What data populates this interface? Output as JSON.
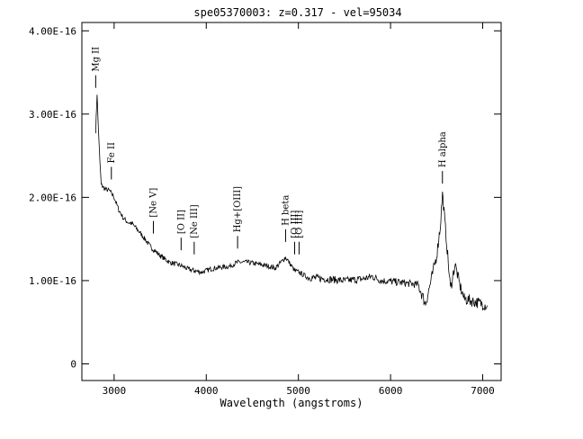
{
  "chart_data": {
    "type": "line",
    "title": "spe05370003: z=0.317 - vel=95034",
    "xlabel": "Wavelength (angstroms)",
    "ylabel": "",
    "xlim": [
      2650,
      7200
    ],
    "ylim": [
      -2e-17,
      4.1e-16
    ],
    "x_ticks": [
      3000,
      4000,
      5000,
      6000,
      7000
    ],
    "x_tick_labels": [
      "3000",
      "4000",
      "5000",
      "6000",
      "7000"
    ],
    "y_ticks": [
      0,
      1e-16,
      2e-16,
      3e-16,
      4e-16
    ],
    "y_tick_labels": [
      "0",
      "1.00E-16",
      "2.00E-16",
      "3.00E-16",
      "4.00E-16"
    ],
    "grid": false,
    "series": [
      {
        "values": [
          [
            2800,
            2.8e-16
          ],
          [
            2815,
            3.25e-16
          ],
          [
            2825,
            2.95e-16
          ],
          [
            2840,
            2.55e-16
          ],
          [
            2860,
            2.15e-16
          ],
          [
            2900,
            2.1e-16
          ],
          [
            2950,
            2.08e-16
          ],
          [
            3000,
            2e-16
          ],
          [
            3050,
            1.85e-16
          ],
          [
            3100,
            1.75e-16
          ],
          [
            3150,
            1.7e-16
          ],
          [
            3200,
            1.68e-16
          ],
          [
            3300,
            1.55e-16
          ],
          [
            3400,
            1.4e-16
          ],
          [
            3500,
            1.3e-16
          ],
          [
            3600,
            1.22e-16
          ],
          [
            3727,
            1.18e-16
          ],
          [
            3800,
            1.14e-16
          ],
          [
            3869,
            1.12e-16
          ],
          [
            3950,
            1.1e-16
          ],
          [
            4050,
            1.14e-16
          ],
          [
            4150,
            1.16e-16
          ],
          [
            4250,
            1.17e-16
          ],
          [
            4340,
            1.22e-16
          ],
          [
            4450,
            1.22e-16
          ],
          [
            4550,
            1.2e-16
          ],
          [
            4650,
            1.18e-16
          ],
          [
            4750,
            1.15e-16
          ],
          [
            4861,
            1.28e-16
          ],
          [
            4959,
            1.12e-16
          ],
          [
            5007,
            1.1e-16
          ],
          [
            5100,
            1.04e-16
          ],
          [
            5300,
            1.02e-16
          ],
          [
            5500,
            1e-16
          ],
          [
            5700,
            1.02e-16
          ],
          [
            5800,
            1.05e-16
          ],
          [
            5900,
            1e-16
          ],
          [
            6100,
            9.8e-17
          ],
          [
            6300,
            9.5e-17
          ],
          [
            6380,
            7.2e-17
          ],
          [
            6450,
            1.05e-16
          ],
          [
            6500,
            1.3e-16
          ],
          [
            6540,
            1.65e-16
          ],
          [
            6563,
            2.05e-16
          ],
          [
            6590,
            1.7e-16
          ],
          [
            6620,
            1.3e-16
          ],
          [
            6650,
            9e-17
          ],
          [
            6700,
            1.2e-16
          ],
          [
            6750,
            9.5e-17
          ],
          [
            6800,
            7.8e-17
          ],
          [
            6900,
            7.5e-17
          ],
          [
            7000,
            7.2e-17
          ],
          [
            7050,
            7e-17
          ]
        ]
      }
    ],
    "line_labels": [
      {
        "label": "Mg II",
        "x": 2800,
        "y": 3.25e-16
      },
      {
        "label": "Fe II",
        "x": 2970,
        "y": 2.15e-16
      },
      {
        "label": "[Ne V]",
        "x": 3426,
        "y": 1.5e-16
      },
      {
        "label": "[O II]",
        "x": 3727,
        "y": 1.3e-16
      },
      {
        "label": "[Ne III]",
        "x": 3869,
        "y": 1.25e-16
      },
      {
        "label": "Hg+[OIII]",
        "x": 4340,
        "y": 1.32e-16
      },
      {
        "label": "H beta",
        "x": 4861,
        "y": 1.4e-16
      },
      {
        "label": "[O III]",
        "x": 4959,
        "y": 1.25e-16
      },
      {
        "label": "[O III]",
        "x": 5007,
        "y": 1.25e-16
      },
      {
        "label": "H alpha",
        "x": 6563,
        "y": 2.1e-16
      }
    ]
  }
}
